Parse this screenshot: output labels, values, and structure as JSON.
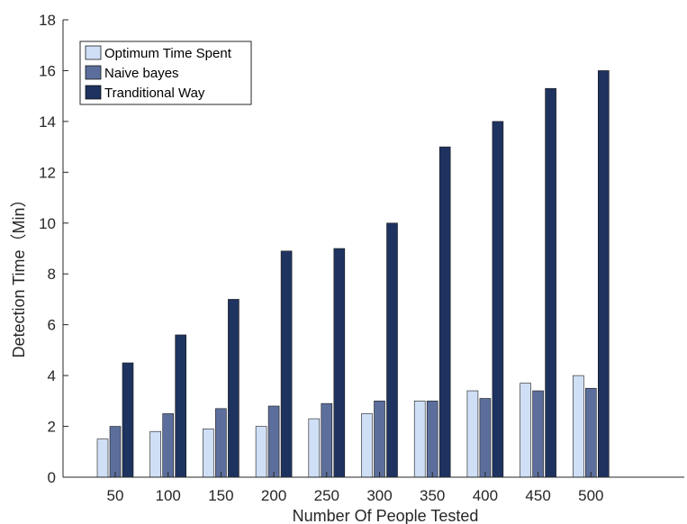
{
  "chart_data": {
    "type": "bar",
    "title": "",
    "xlabel": "Number Of People Tested",
    "ylabel": "Detection Time（Min）",
    "categories": [
      "50",
      "100",
      "150",
      "200",
      "250",
      "300",
      "350",
      "400",
      "450",
      "500"
    ],
    "ylim": [
      0,
      18
    ],
    "yticks": [
      0,
      2,
      4,
      6,
      8,
      10,
      12,
      14,
      16,
      18
    ],
    "grid": false,
    "legend_position": "top-left",
    "series": [
      {
        "name": "Optimum Time Spent",
        "color": "#cfdff5",
        "values": [
          1.5,
          1.8,
          1.9,
          2.0,
          2.3,
          2.5,
          3.0,
          3.4,
          3.7,
          4.0
        ]
      },
      {
        "name": "Naive bayes",
        "color": "#5c6f9c",
        "values": [
          2.0,
          2.5,
          2.7,
          2.8,
          2.9,
          3.0,
          3.0,
          3.1,
          3.4,
          3.5
        ]
      },
      {
        "name": "Tranditional Way",
        "color": "#1f3360",
        "values": [
          4.5,
          5.6,
          7.0,
          8.9,
          9.0,
          10.0,
          13.0,
          14.0,
          15.3,
          16.0
        ]
      }
    ]
  }
}
